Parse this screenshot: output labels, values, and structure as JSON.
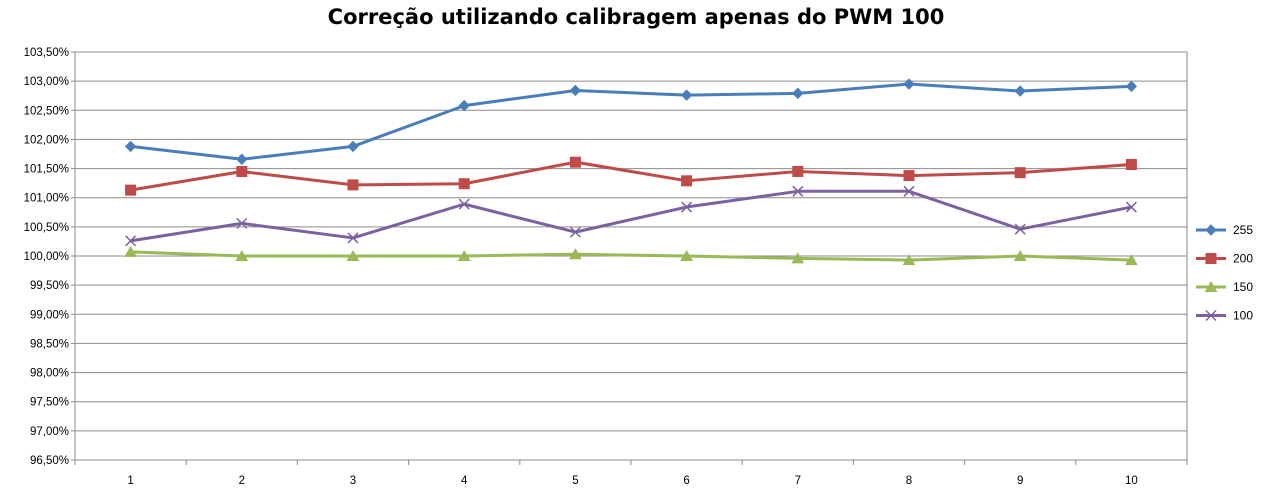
{
  "chart_data": {
    "type": "line",
    "title": "Correção  utilizando calibragem apenas do PWM 100",
    "xlabel": "",
    "ylabel": "",
    "categories": [
      "1",
      "2",
      "3",
      "4",
      "5",
      "6",
      "7",
      "8",
      "9",
      "10"
    ],
    "ylim": [
      96.5,
      103.5
    ],
    "y_tick_step": 0.5,
    "y_tick_labels": [
      "96,50%",
      "97,00%",
      "97,50%",
      "98,00%",
      "98,50%",
      "99,00%",
      "99,50%",
      "100,00%",
      "100,50%",
      "101,00%",
      "101,50%",
      "102,00%",
      "102,50%",
      "103,00%",
      "103,50%"
    ],
    "grid": true,
    "legend_position": "right",
    "series": [
      {
        "name": "255",
        "color": "#4a7ebb",
        "marker": "diamond",
        "values": [
          101.88,
          101.66,
          101.88,
          102.58,
          102.84,
          102.76,
          102.79,
          102.95,
          102.83,
          102.91
        ]
      },
      {
        "name": "200",
        "color": "#be4b48",
        "marker": "square",
        "values": [
          101.13,
          101.45,
          101.22,
          101.24,
          101.61,
          101.29,
          101.45,
          101.38,
          101.43,
          101.57
        ]
      },
      {
        "name": "150",
        "color": "#98b954",
        "marker": "triangle",
        "values": [
          100.07,
          100.0,
          100.0,
          100.0,
          100.03,
          100.0,
          99.96,
          99.93,
          100.0,
          99.93
        ]
      },
      {
        "name": "100",
        "color": "#7d60a0",
        "marker": "x",
        "values": [
          100.26,
          100.56,
          100.31,
          100.89,
          100.41,
          100.84,
          101.11,
          101.11,
          100.46,
          100.84
        ]
      }
    ]
  }
}
